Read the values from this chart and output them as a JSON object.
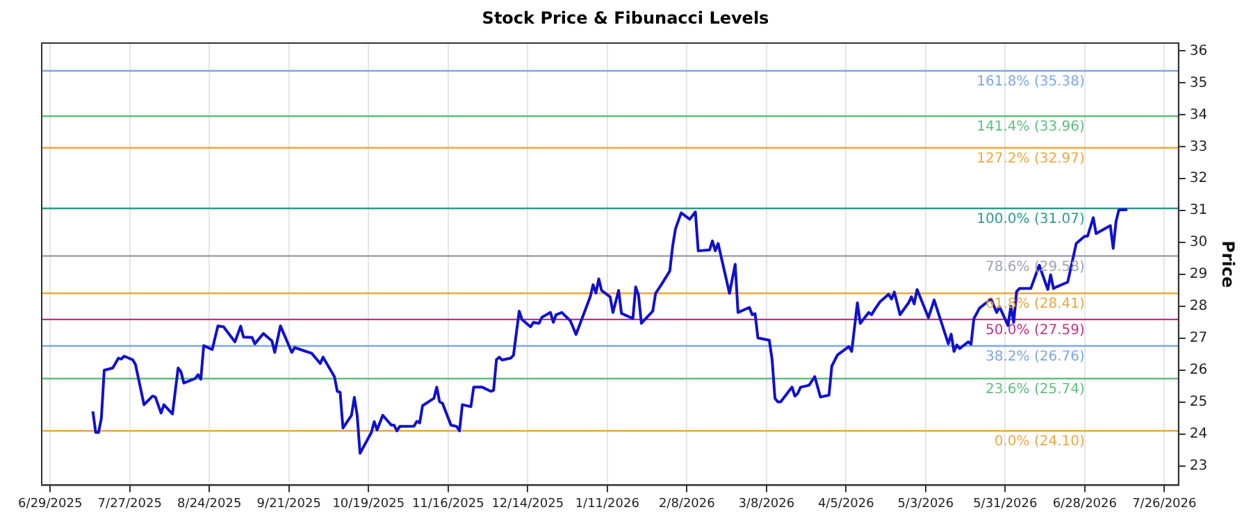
{
  "chart_data": {
    "type": "line",
    "title": "Stock Price & Fibunacci Levels",
    "ylabel": "Price",
    "x": [
      "2025-07-14",
      "2025-07-15",
      "2025-07-16",
      "2025-07-17",
      "2025-07-18",
      "2025-07-21",
      "2025-07-23",
      "2025-07-24",
      "2025-07-25",
      "2025-07-28",
      "2025-07-29",
      "2025-08-01",
      "2025-08-04",
      "2025-08-05",
      "2025-08-07",
      "2025-08-08",
      "2025-08-11",
      "2025-08-13",
      "2025-08-14",
      "2025-08-15",
      "2025-08-19",
      "2025-08-20",
      "2025-08-21",
      "2025-08-22",
      "2025-08-25",
      "2025-08-27",
      "2025-08-29",
      "2025-09-02",
      "2025-09-04",
      "2025-09-05",
      "2025-09-08",
      "2025-09-09",
      "2025-09-12",
      "2025-09-15",
      "2025-09-16",
      "2025-09-18",
      "2025-09-22",
      "2025-09-23",
      "2025-09-26",
      "2025-09-29",
      "2025-10-02",
      "2025-10-03",
      "2025-10-07",
      "2025-10-08",
      "2025-10-09",
      "2025-10-10",
      "2025-10-13",
      "2025-10-14",
      "2025-10-15",
      "2025-10-16",
      "2025-10-20",
      "2025-10-21",
      "2025-10-22",
      "2025-10-24",
      "2025-10-27",
      "2025-10-28",
      "2025-10-29",
      "2025-10-30",
      "2025-11-04",
      "2025-11-05",
      "2025-11-06",
      "2025-11-07",
      "2025-11-11",
      "2025-11-12",
      "2025-11-13",
      "2025-11-14",
      "2025-11-17",
      "2025-11-19",
      "2025-11-20",
      "2025-11-21",
      "2025-11-24",
      "2025-11-25",
      "2025-11-28",
      "2025-12-01",
      "2025-12-02",
      "2025-12-03",
      "2025-12-04",
      "2025-12-05",
      "2025-12-08",
      "2025-12-09",
      "2025-12-11",
      "2025-12-12",
      "2025-12-15",
      "2025-12-16",
      "2025-12-18",
      "2025-12-19",
      "2025-12-22",
      "2025-12-23",
      "2025-12-24",
      "2025-12-26",
      "2025-12-29",
      "2025-12-31",
      "2026-01-05",
      "2026-01-06",
      "2026-01-07",
      "2026-01-08",
      "2026-01-09",
      "2026-01-12",
      "2026-01-13",
      "2026-01-15",
      "2026-01-16",
      "2026-01-20",
      "2026-01-21",
      "2026-01-22",
      "2026-01-23",
      "2026-01-27",
      "2026-01-28",
      "2026-01-30",
      "2026-02-02",
      "2026-02-03",
      "2026-02-04",
      "2026-02-06",
      "2026-02-09",
      "2026-02-11",
      "2026-02-12",
      "2026-02-16",
      "2026-02-17",
      "2026-02-18",
      "2026-02-19",
      "2026-02-23",
      "2026-02-25",
      "2026-02-26",
      "2026-03-02",
      "2026-03-03",
      "2026-03-04",
      "2026-03-05",
      "2026-03-09",
      "2026-03-10",
      "2026-03-11",
      "2026-03-12",
      "2026-03-13",
      "2026-03-17",
      "2026-03-18",
      "2026-03-19",
      "2026-03-20",
      "2026-03-23",
      "2026-03-25",
      "2026-03-27",
      "2026-03-30",
      "2026-03-31",
      "2026-04-02",
      "2026-04-06",
      "2026-04-07",
      "2026-04-09",
      "2026-04-10",
      "2026-04-13",
      "2026-04-14",
      "2026-04-15",
      "2026-04-17",
      "2026-04-20",
      "2026-04-21",
      "2026-04-22",
      "2026-04-24",
      "2026-04-27",
      "2026-04-28",
      "2026-04-29",
      "2026-04-30",
      "2026-05-04",
      "2026-05-06",
      "2026-05-11",
      "2026-05-12",
      "2026-05-13",
      "2026-05-14",
      "2026-05-15",
      "2026-05-18",
      "2026-05-19",
      "2026-05-20",
      "2026-05-22",
      "2026-05-26",
      "2026-05-28",
      "2026-05-29",
      "2026-06-01",
      "2026-06-02",
      "2026-06-03",
      "2026-06-04",
      "2026-06-05",
      "2026-06-09",
      "2026-06-12",
      "2026-06-15",
      "2026-06-16",
      "2026-06-17",
      "2026-06-18",
      "2026-06-22",
      "2026-06-25",
      "2026-06-28",
      "2026-06-29",
      "2026-07-01",
      "2026-07-02",
      "2026-07-07",
      "2026-07-08",
      "2026-07-09",
      "2026-07-10",
      "2026-07-13"
    ],
    "series": [
      {
        "color": "#1010d0",
        "values": [
          24.71,
          24.05,
          24.05,
          24.5,
          26.0,
          26.07,
          26.38,
          26.35,
          26.44,
          26.33,
          26.18,
          24.92,
          25.19,
          25.16,
          24.66,
          24.92,
          24.63,
          26.07,
          25.95,
          25.6,
          25.74,
          25.86,
          25.72,
          26.77,
          26.65,
          27.39,
          27.36,
          26.89,
          27.38,
          27.04,
          27.03,
          26.83,
          27.15,
          26.92,
          26.56,
          27.39,
          26.56,
          26.71,
          26.62,
          26.53,
          26.21,
          26.41,
          25.8,
          25.34,
          25.31,
          24.19,
          24.59,
          25.15,
          24.59,
          23.4,
          24.05,
          24.39,
          24.13,
          24.59,
          24.28,
          24.28,
          24.1,
          24.24,
          24.25,
          24.4,
          24.35,
          24.89,
          25.12,
          25.47,
          25.01,
          24.97,
          24.28,
          24.24,
          24.1,
          24.92,
          24.86,
          25.47,
          25.47,
          25.34,
          25.37,
          26.33,
          26.41,
          26.32,
          26.38,
          26.47,
          27.85,
          27.59,
          27.36,
          27.5,
          27.47,
          27.66,
          27.81,
          27.5,
          27.74,
          27.81,
          27.55,
          27.12,
          28.3,
          28.68,
          28.42,
          28.86,
          28.5,
          28.3,
          27.81,
          28.5,
          27.78,
          27.62,
          28.61,
          28.35,
          27.47,
          27.85,
          28.41,
          28.68,
          29.11,
          29.89,
          30.43,
          30.93,
          30.73,
          30.96,
          29.74,
          29.77,
          30.05,
          29.74,
          29.97,
          28.41,
          29.32,
          27.81,
          27.97,
          27.74,
          27.77,
          27.01,
          26.94,
          26.33,
          25.12,
          25.01,
          25.01,
          25.47,
          25.19,
          25.27,
          25.47,
          25.53,
          25.8,
          25.16,
          25.22,
          26.13,
          26.48,
          26.74,
          26.59,
          28.11,
          27.47,
          27.81,
          27.74,
          27.89,
          28.15,
          28.38,
          28.23,
          28.45,
          27.74,
          28.11,
          28.3,
          28.08,
          28.53,
          27.65,
          28.2,
          26.83,
          27.13,
          26.59,
          26.79,
          26.68,
          26.89,
          26.82,
          27.62,
          27.95,
          28.23,
          27.81,
          27.99,
          27.4,
          28.0,
          27.5,
          28.46,
          28.56,
          28.56,
          29.29,
          28.53,
          28.99,
          28.56,
          28.61,
          28.76,
          29.97,
          30.2,
          30.2,
          30.78,
          30.28,
          30.53,
          29.82,
          30.66,
          31.02,
          31.03
        ]
      }
    ],
    "xlim": [
      "2025-06-26",
      "2026-07-31"
    ],
    "xticks": [
      {
        "value": "2025-06-29",
        "label": "6/29/2025"
      },
      {
        "value": "2025-07-27",
        "label": "7/27/2025"
      },
      {
        "value": "2025-08-24",
        "label": "8/24/2025"
      },
      {
        "value": "2025-09-21",
        "label": "9/21/2025"
      },
      {
        "value": "2025-10-19",
        "label": "10/19/2025"
      },
      {
        "value": "2025-11-16",
        "label": "11/16/2025"
      },
      {
        "value": "2025-12-14",
        "label": "12/14/2025"
      },
      {
        "value": "2026-01-11",
        "label": "1/11/2026"
      },
      {
        "value": "2026-02-08",
        "label": "2/8/2026"
      },
      {
        "value": "2026-03-08",
        "label": "3/8/2026"
      },
      {
        "value": "2026-04-05",
        "label": "4/5/2026"
      },
      {
        "value": "2026-05-03",
        "label": "5/3/2026"
      },
      {
        "value": "2026-05-31",
        "label": "5/31/2026"
      },
      {
        "value": "2026-06-28",
        "label": "6/28/2026"
      },
      {
        "value": "2026-07-26",
        "label": "7/26/2026"
      }
    ],
    "ylim": [
      22.4,
      36.25
    ],
    "yticks": [
      23,
      24,
      25,
      26,
      27,
      28,
      29,
      30,
      31,
      32,
      33,
      34,
      35,
      36
    ],
    "ref_lines": [
      {
        "axis": "y",
        "value": 35.38,
        "label": "161.8% (35.38)",
        "color": "#7ba7e6"
      },
      {
        "axis": "y",
        "value": 33.96,
        "label": "141.4% (33.96)",
        "color": "#5cbf7a"
      },
      {
        "axis": "y",
        "value": 32.97,
        "label": "127.2% (32.97)",
        "color": "#f2a640"
      },
      {
        "axis": "y",
        "value": 31.07,
        "label": "100.0% (31.07)",
        "color": "#2a9a8a"
      },
      {
        "axis": "y",
        "value": 29.58,
        "label": "78.6% (29.58)",
        "color": "#a0a0b0"
      },
      {
        "axis": "y",
        "value": 28.41,
        "label": "61.8% (28.41)",
        "color": "#e8a83a"
      },
      {
        "axis": "y",
        "value": 27.59,
        "label": "50.0% (27.59)",
        "color": "#c0308a"
      },
      {
        "axis": "y",
        "value": 26.76,
        "label": "38.2% (26.76)",
        "color": "#7ba7e6"
      },
      {
        "axis": "y",
        "value": 25.74,
        "label": "23.6% (25.74)",
        "color": "#5cbf7a"
      },
      {
        "axis": "y",
        "value": 24.1,
        "label": "0.0% (24.10)",
        "color": "#f2a640"
      }
    ],
    "grid": "x",
    "legend": false,
    "marker": "none",
    "line_style": "solid"
  }
}
